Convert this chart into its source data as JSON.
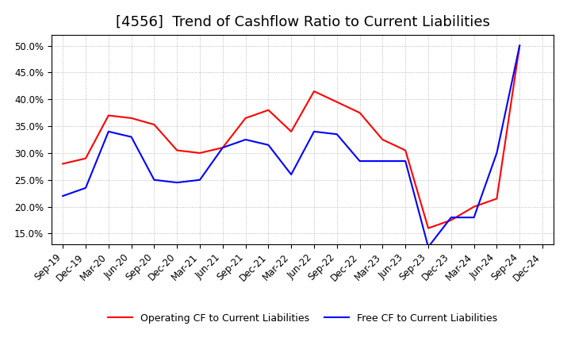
{
  "title": "[4556]  Trend of Cashflow Ratio to Current Liabilities",
  "ylim": [
    0.13,
    0.52
  ],
  "yticks": [
    0.15,
    0.2,
    0.25,
    0.3,
    0.35,
    0.4,
    0.45,
    0.5
  ],
  "x_labels": [
    "Sep-19",
    "Dec-19",
    "Mar-20",
    "Jun-20",
    "Sep-20",
    "Dec-20",
    "Mar-21",
    "Jun-21",
    "Sep-21",
    "Dec-21",
    "Mar-22",
    "Jun-22",
    "Sep-22",
    "Dec-22",
    "Mar-23",
    "Jun-23",
    "Sep-23",
    "Dec-23",
    "Mar-24",
    "Jun-24",
    "Sep-24",
    "Dec-24"
  ],
  "operating_cf": [
    0.28,
    0.29,
    0.37,
    0.365,
    0.353,
    0.305,
    0.3,
    0.31,
    0.365,
    0.38,
    0.34,
    0.415,
    0.395,
    0.375,
    0.325,
    0.305,
    0.16,
    0.175,
    0.2,
    0.215,
    0.5,
    null
  ],
  "free_cf": [
    0.22,
    0.235,
    0.34,
    0.33,
    0.25,
    0.245,
    0.25,
    0.31,
    0.325,
    0.315,
    0.26,
    0.34,
    0.335,
    0.285,
    0.285,
    0.285,
    0.125,
    0.18,
    0.18,
    0.3,
    0.5,
    null
  ],
  "operating_color": "#FF0000",
  "free_color": "#0000FF",
  "grid_color": "#AAAAAA",
  "background_color": "#FFFFFF",
  "title_fontsize": 13,
  "tick_fontsize": 8.5,
  "legend_labels": [
    "Operating CF to Current Liabilities",
    "Free CF to Current Liabilities"
  ]
}
